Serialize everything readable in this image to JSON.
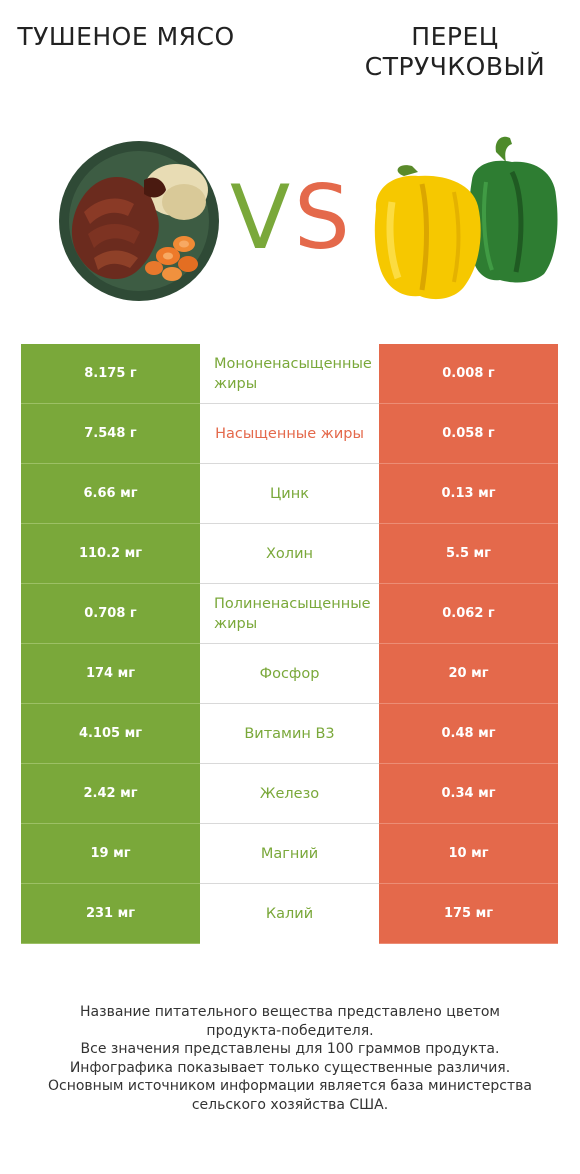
{
  "titles": {
    "left": "ТУШЕНОЕ МЯСО",
    "right": "ПЕРЕЦ СТРУЧКОВЫЙ"
  },
  "vs_text": {
    "v": "V",
    "s": "S"
  },
  "colors": {
    "left_winner": "#7aa83a",
    "right_winner": "#e4694b"
  },
  "chart_data": {
    "type": "table",
    "columns": [
      "ТУШЕНОЕ МЯСО",
      "",
      "ПЕРЕЦ СТРУЧКОВЫЙ"
    ],
    "rows": [
      {
        "left": "8.175 г",
        "nutrient": "Мононенасыщенные жиры",
        "right": "0.008 г",
        "winner": "left"
      },
      {
        "left": "7.548 г",
        "nutrient": "Насыщенные жиры",
        "right": "0.058 г",
        "winner": "right"
      },
      {
        "left": "6.66 мг",
        "nutrient": "Цинк",
        "right": "0.13 мг",
        "winner": "left"
      },
      {
        "left": "110.2 мг",
        "nutrient": "Холин",
        "right": "5.5 мг",
        "winner": "left"
      },
      {
        "left": "0.708 г",
        "nutrient": "Полиненасыщенные жиры",
        "right": "0.062 г",
        "winner": "left"
      },
      {
        "left": "174 мг",
        "nutrient": "Фосфор",
        "right": "20 мг",
        "winner": "left"
      },
      {
        "left": "4.105 мг",
        "nutrient": "Витамин B3",
        "right": "0.48 мг",
        "winner": "left"
      },
      {
        "left": "2.42 мг",
        "nutrient": "Железо",
        "right": "0.34 мг",
        "winner": "left"
      },
      {
        "left": "19 мг",
        "nutrient": "Магний",
        "right": "10 мг",
        "winner": "left"
      },
      {
        "left": "231 мг",
        "nutrient": "Калий",
        "right": "175 мг",
        "winner": "left"
      }
    ]
  },
  "footer": {
    "line1": "Название питательного вещества представлено цветом",
    "line2": "продукта-победителя.",
    "line3": "Все значения представлены для 100 граммов продукта.",
    "line4": "Инфографика показывает только существенные различия.",
    "line5": "Основным источником информации является база министерства",
    "line6": "сельского хозяйства США."
  }
}
